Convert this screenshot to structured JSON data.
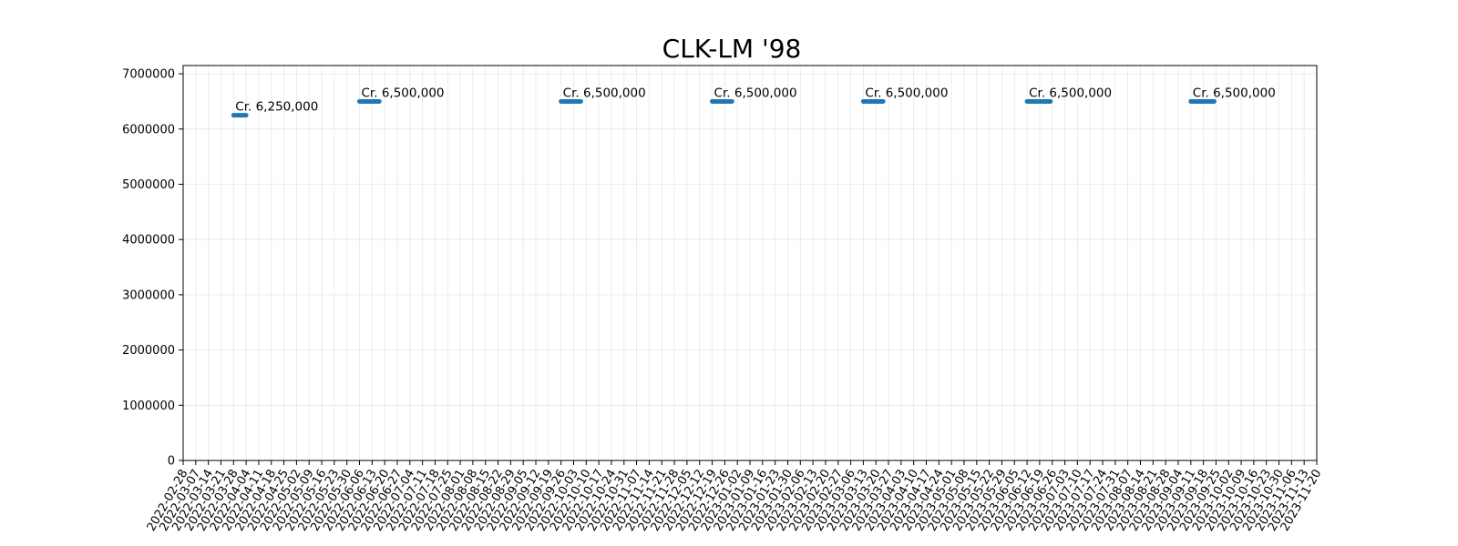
{
  "chart_data": {
    "type": "line",
    "title": "CLK-LM '98",
    "xlabel": "",
    "ylabel": "",
    "x_axis": "date",
    "xlim": [
      "2022-02-28",
      "2023-11-20"
    ],
    "x_ticks": [
      "2022-02-28",
      "2022-03-07",
      "2022-03-14",
      "2022-03-21",
      "2022-03-28",
      "2022-04-04",
      "2022-04-11",
      "2022-04-18",
      "2022-04-25",
      "2022-05-02",
      "2022-05-09",
      "2022-05-16",
      "2022-05-23",
      "2022-05-30",
      "2022-06-06",
      "2022-06-13",
      "2022-06-20",
      "2022-06-27",
      "2022-07-04",
      "2022-07-11",
      "2022-07-18",
      "2022-07-25",
      "2022-08-01",
      "2022-08-08",
      "2022-08-15",
      "2022-08-22",
      "2022-08-29",
      "2022-09-05",
      "2022-09-12",
      "2022-09-19",
      "2022-09-26",
      "2022-10-03",
      "2022-10-10",
      "2022-10-17",
      "2022-10-24",
      "2022-10-31",
      "2022-11-07",
      "2022-11-14",
      "2022-11-21",
      "2022-11-28",
      "2022-12-05",
      "2022-12-12",
      "2022-12-19",
      "2022-12-26",
      "2023-01-02",
      "2023-01-09",
      "2023-01-16",
      "2023-01-23",
      "2023-01-30",
      "2023-02-06",
      "2023-02-13",
      "2023-02-20",
      "2023-02-27",
      "2023-03-06",
      "2023-03-13",
      "2023-03-20",
      "2023-03-27",
      "2023-04-03",
      "2023-04-10",
      "2023-04-17",
      "2023-04-24",
      "2023-05-01",
      "2023-05-08",
      "2023-05-15",
      "2023-05-22",
      "2023-05-29",
      "2023-06-05",
      "2023-06-12",
      "2023-06-19",
      "2023-06-26",
      "2023-07-03",
      "2023-07-10",
      "2023-07-17",
      "2023-07-24",
      "2023-07-31",
      "2023-08-07",
      "2023-08-14",
      "2023-08-21",
      "2023-08-28",
      "2023-09-04",
      "2023-09-11",
      "2023-09-18",
      "2023-09-25",
      "2023-10-02",
      "2023-10-09",
      "2023-10-16",
      "2023-10-23",
      "2023-10-30",
      "2023-11-06",
      "2023-11-13",
      "2023-11-20"
    ],
    "ylim": [
      0,
      7150000
    ],
    "y_ticks": [
      0,
      1000000,
      2000000,
      3000000,
      4000000,
      5000000,
      6000000,
      7000000
    ],
    "grid": true,
    "legend": "none",
    "series": [
      {
        "color": "#1f77b4",
        "segments": [
          {
            "start": "2022-03-28",
            "end": "2022-04-04",
            "value": 6250000,
            "label": "Cr. 6,250,000"
          },
          {
            "start": "2022-06-06",
            "end": "2022-06-17",
            "value": 6500000,
            "label": "Cr. 6,500,000"
          },
          {
            "start": "2022-09-26",
            "end": "2022-10-07",
            "value": 6500000,
            "label": "Cr. 6,500,000"
          },
          {
            "start": "2022-12-19",
            "end": "2022-12-30",
            "value": 6500000,
            "label": "Cr. 6,500,000"
          },
          {
            "start": "2023-03-13",
            "end": "2023-03-24",
            "value": 6500000,
            "label": "Cr. 6,500,000"
          },
          {
            "start": "2023-06-12",
            "end": "2023-06-25",
            "value": 6500000,
            "label": "Cr. 6,500,000"
          },
          {
            "start": "2023-09-11",
            "end": "2023-09-24",
            "value": 6500000,
            "label": "Cr. 6,500,000"
          }
        ]
      }
    ]
  }
}
